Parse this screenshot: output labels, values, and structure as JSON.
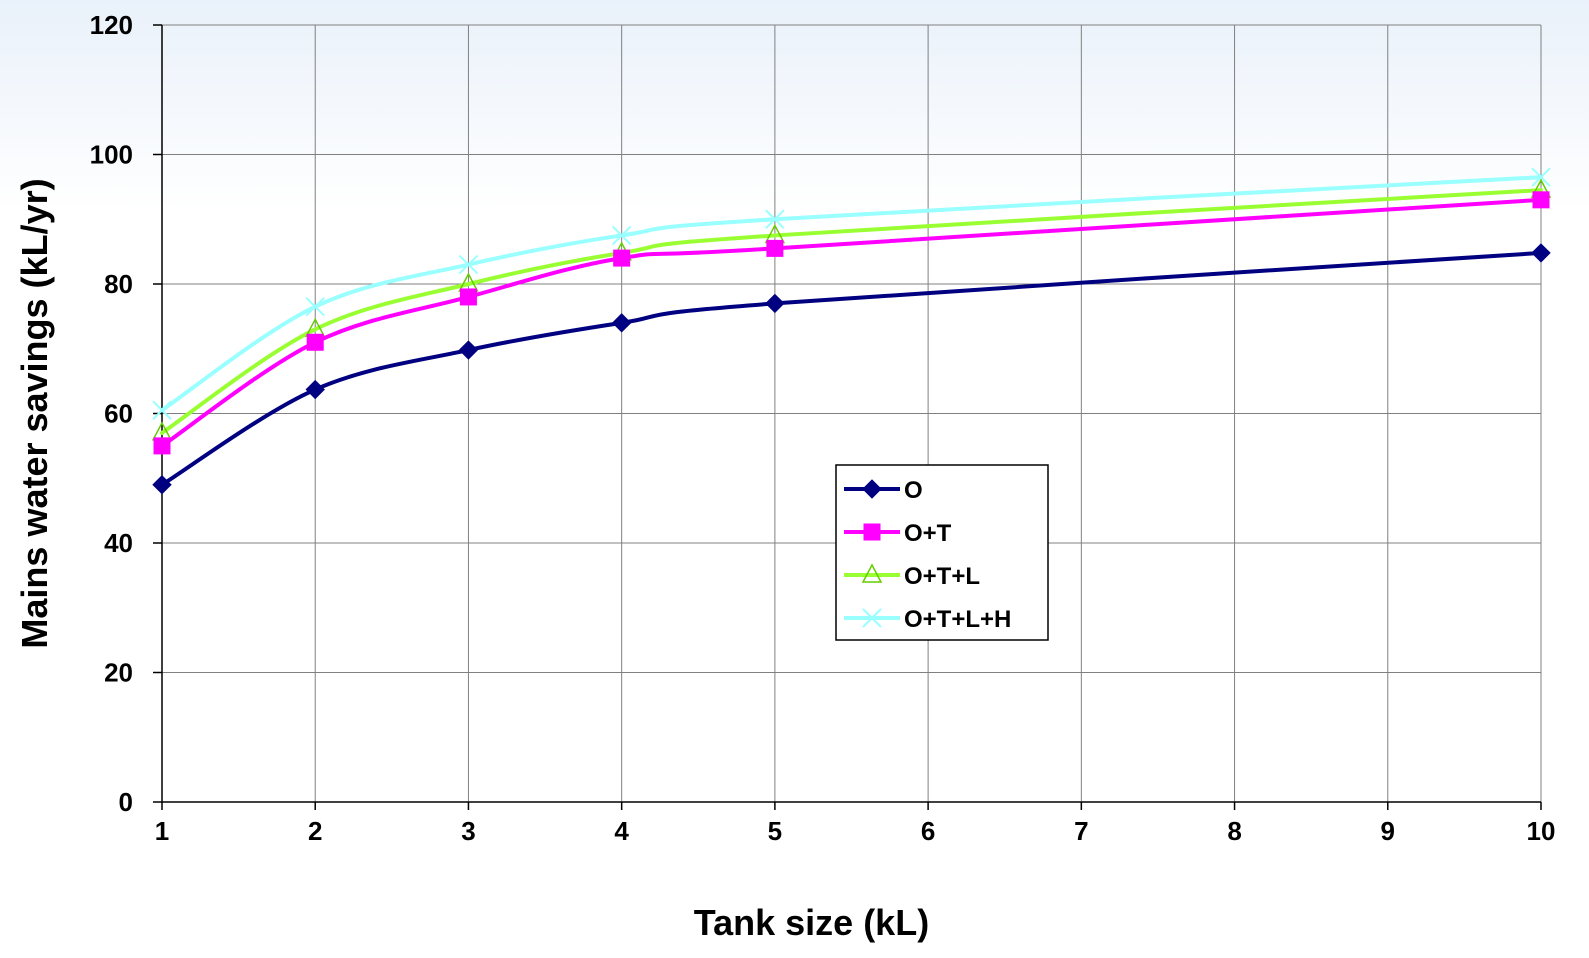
{
  "chart_data": {
    "type": "line",
    "title": "",
    "xlabel": "Tank size (kL)",
    "ylabel": "Mains water savings (kL/yr)",
    "x": [
      1,
      2,
      3,
      4,
      5,
      10
    ],
    "x_ticks": [
      "1",
      "2",
      "3",
      "4",
      "5",
      "6",
      "7",
      "8",
      "9",
      "10"
    ],
    "y_ticks": [
      "0",
      "20",
      "40",
      "60",
      "80",
      "100",
      "120"
    ],
    "xlim": [
      1,
      10
    ],
    "ylim": [
      0,
      120
    ],
    "grid": true,
    "legend_position": "center-right",
    "series": [
      {
        "name": "O",
        "values": [
          49,
          63.7,
          69.8,
          74,
          77,
          84.8
        ],
        "color": "#000080",
        "marker": "diamond"
      },
      {
        "name": "O+T",
        "values": [
          55,
          71,
          78,
          84,
          85.5,
          93
        ],
        "color": "#ff00ff",
        "marker": "square"
      },
      {
        "name": "O+T+L",
        "values": [
          57,
          73,
          80,
          84.8,
          87.5,
          94.5
        ],
        "color": "#99ff33",
        "marker": "triangle"
      },
      {
        "name": "O+T+L+H",
        "values": [
          60.5,
          76.5,
          83,
          87.5,
          90,
          96.5
        ],
        "color": "#99ffff",
        "marker": "x"
      }
    ]
  }
}
